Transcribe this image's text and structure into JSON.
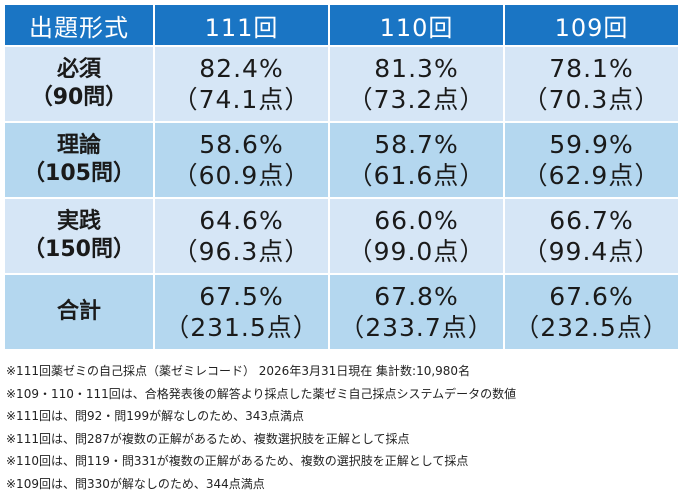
{
  "table": {
    "header": [
      "出題形式",
      "111回",
      "110回",
      "109回"
    ],
    "rows": [
      {
        "category": "必須",
        "sub": "（90問）",
        "cells": [
          {
            "pct": "82.4%",
            "pts": "（74.1点）"
          },
          {
            "pct": "81.3%",
            "pts": "（73.2点）"
          },
          {
            "pct": "78.1%",
            "pts": "（70.3点）"
          }
        ]
      },
      {
        "category": "理論",
        "sub": "（105問）",
        "cells": [
          {
            "pct": "58.6%",
            "pts": "（60.9点）"
          },
          {
            "pct": "58.7%",
            "pts": "（61.6点）"
          },
          {
            "pct": "59.9%",
            "pts": "（62.9点）"
          }
        ]
      },
      {
        "category": "実践",
        "sub": "（150問）",
        "cells": [
          {
            "pct": "64.6%",
            "pts": "（96.3点）"
          },
          {
            "pct": "66.0%",
            "pts": "（99.0点）"
          },
          {
            "pct": "66.7%",
            "pts": "（99.4点）"
          }
        ]
      },
      {
        "category": "合計",
        "sub": "",
        "cells": [
          {
            "pct": "67.5%",
            "pts": "（231.5点）"
          },
          {
            "pct": "67.8%",
            "pts": "（233.7点）"
          },
          {
            "pct": "67.6%",
            "pts": "（232.5点）"
          }
        ]
      }
    ]
  },
  "notes": [
    "※111回薬ゼミの自己採点（薬ゼミレコード） 2026年3月31日現在 集計数:10,980名",
    "※109・110・111回は、合格発表後の解答より採点した薬ゼミ自己採点システムデータの数値",
    "※111回は、問92・問199が解なしのため、343点満点",
    "※111回は、問287が複数の正解があるため、複数選択肢を正解として採点",
    "※110回は、問119・問331が複数の正解があるため、複数の選択肢を正解として採点",
    "※109回は、問330が解なしのため、344点満点"
  ],
  "colors": {
    "header_bg": "#1a75c4",
    "row_light": "#d6e6f6",
    "row_dark": "#b4d7ef"
  }
}
